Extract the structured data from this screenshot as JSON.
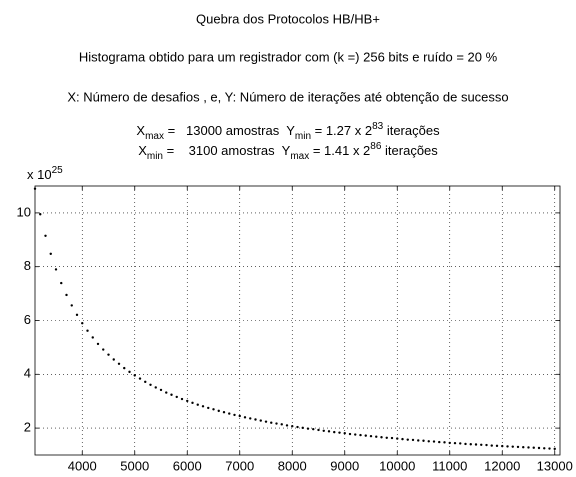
{
  "chart_data": {
    "type": "scatter",
    "title": "Quebra dos Protocolos HB/HB+",
    "subtitle": "Histograma obtido para um registrador com (k =) 256 bits e ruído = 20 %",
    "description": "X: Número de desafios , e, Y: Número de iterações até obtenção de sucesso",
    "annotations": [
      [
        {
          "text": "X"
        },
        {
          "text": "max",
          "style": "sub"
        },
        {
          "text": " =   13000 amostras  Y"
        },
        {
          "text": "min",
          "style": "sub"
        },
        {
          "text": " = 1.27 x 2"
        },
        {
          "text": "83",
          "style": "sup"
        },
        {
          "text": " iterações"
        }
      ],
      [
        {
          "text": "X"
        },
        {
          "text": "min",
          "style": "sub"
        },
        {
          "text": " =    3100 amostras  Y"
        },
        {
          "text": "max",
          "style": "sub"
        },
        {
          "text": " = 1.41 x 2"
        },
        {
          "text": "86",
          "style": "sup"
        },
        {
          "text": " iterações"
        }
      ]
    ],
    "y_multiplier": [
      {
        "text": "x 10"
      },
      {
        "text": "25",
        "style": "sup"
      }
    ],
    "color": "#000000",
    "grid": true,
    "xlim": [
      3100,
      13100
    ],
    "ylim": [
      1,
      11
    ],
    "xticks": [
      4000,
      5000,
      6000,
      7000,
      8000,
      9000,
      10000,
      11000,
      12000,
      13000
    ],
    "yticks": [
      2,
      4,
      6,
      8,
      10
    ],
    "x": [
      3100,
      3200,
      3300,
      3400,
      3500,
      3600,
      3700,
      3800,
      3900,
      4000,
      4100,
      4200,
      4300,
      4400,
      4500,
      4600,
      4700,
      4800,
      4900,
      5000,
      5100,
      5200,
      5300,
      5400,
      5500,
      5600,
      5700,
      5800,
      5900,
      6000,
      6100,
      6200,
      6300,
      6400,
      6500,
      6600,
      6700,
      6800,
      6900,
      7000,
      7100,
      7200,
      7300,
      7400,
      7500,
      7600,
      7700,
      7800,
      7900,
      8000,
      8100,
      8200,
      8300,
      8400,
      8500,
      8600,
      8700,
      8800,
      8900,
      9000,
      9100,
      9200,
      9300,
      9400,
      9500,
      9600,
      9700,
      9800,
      9900,
      10000,
      10100,
      10200,
      10300,
      10400,
      10500,
      10600,
      10700,
      10800,
      10900,
      11000,
      11100,
      11200,
      11300,
      11400,
      11500,
      11600,
      11700,
      11800,
      11900,
      12000,
      12100,
      12200,
      12300,
      12400,
      12500,
      12600,
      12700,
      12800,
      12900,
      13000
    ],
    "values": [
      10.9,
      9.95,
      9.15,
      8.48,
      7.9,
      7.39,
      6.95,
      6.56,
      6.21,
      5.9,
      5.62,
      5.37,
      5.13,
      4.92,
      4.73,
      4.55,
      4.39,
      4.23,
      4.09,
      3.96,
      3.84,
      3.72,
      3.61,
      3.51,
      3.42,
      3.32,
      3.24,
      3.16,
      3.08,
      3.01,
      2.94,
      2.87,
      2.81,
      2.75,
      2.7,
      2.64,
      2.59,
      2.54,
      2.49,
      2.45,
      2.4,
      2.36,
      2.32,
      2.28,
      2.24,
      2.2,
      2.17,
      2.14,
      2.1,
      2.07,
      2.04,
      2.01,
      1.98,
      1.96,
      1.93,
      1.9,
      1.88,
      1.85,
      1.83,
      1.81,
      1.78,
      1.76,
      1.74,
      1.72,
      1.7,
      1.68,
      1.66,
      1.64,
      1.63,
      1.61,
      1.59,
      1.57,
      1.56,
      1.54,
      1.53,
      1.51,
      1.5,
      1.48,
      1.47,
      1.45,
      1.44,
      1.43,
      1.41,
      1.4,
      1.39,
      1.38,
      1.37,
      1.35,
      1.34,
      1.33,
      1.32,
      1.31,
      1.3,
      1.29,
      1.28,
      1.27,
      1.26,
      1.25,
      1.24,
      1.23
    ]
  }
}
